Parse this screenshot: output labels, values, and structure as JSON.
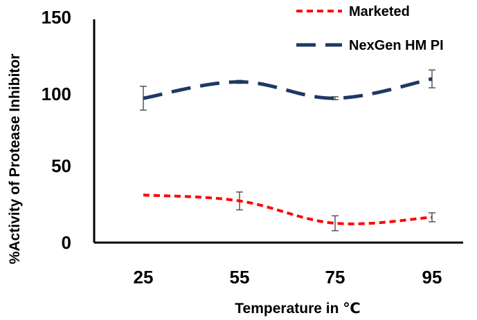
{
  "chart_data": {
    "type": "line",
    "title": "",
    "xlabel": "Temperature in ℃",
    "ylabel": "%Activity of Protease Inhibitor",
    "categories": [
      "25",
      "55",
      "75",
      "95"
    ],
    "ylim": [
      0,
      150
    ],
    "yticks": [
      "0",
      "50",
      "100",
      "150"
    ],
    "grid": false,
    "legend_position": "top-right",
    "series": [
      {
        "name": "Marketed",
        "values": [
          32,
          28,
          13,
          17
        ],
        "errors": [
          0,
          6,
          5,
          3
        ],
        "color": "#ff0000",
        "dash": "short-dash"
      },
      {
        "name": "NexGen HM PI",
        "values": [
          97,
          108,
          97,
          110
        ],
        "errors": [
          8,
          1,
          1,
          6
        ],
        "color": "#1f3864",
        "dash": "long-dash"
      }
    ]
  }
}
